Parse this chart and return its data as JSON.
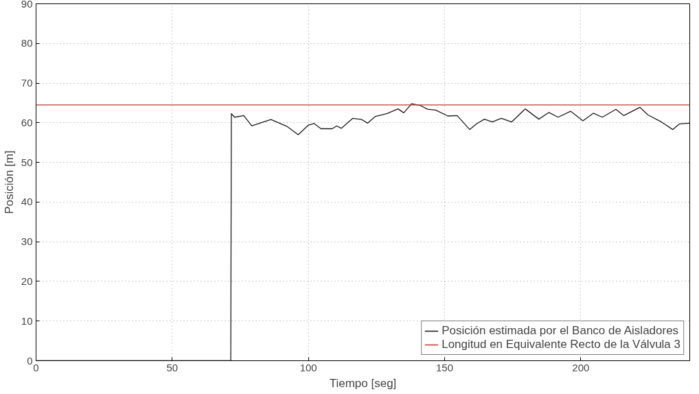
{
  "chart_data": {
    "type": "line",
    "xlabel": "Tiempo [seg]",
    "ylabel": "Posición [m]",
    "xlim": [
      0,
      240
    ],
    "ylim": [
      0,
      90
    ],
    "xticks": [
      0,
      50,
      100,
      150,
      200
    ],
    "yticks": [
      0,
      10,
      20,
      30,
      40,
      50,
      60,
      70,
      80,
      90
    ],
    "grid": true,
    "legend": "bottom right",
    "marker": "none",
    "line_style": "solid",
    "series": [
      {
        "name": "Posición estimada por el Banco de Aisladores",
        "color": "#1a1a1a",
        "x": [
          0,
          71.5,
          71.7,
          72.9,
          76.25,
          79.2,
          81.25,
          86.25,
          92.1,
          96.25,
          100,
          102.1,
          104.6,
          108.75,
          110.4,
          112.1,
          116.25,
          119.6,
          121.7,
          124.6,
          128.75,
          132.9,
          135,
          137.9,
          141.25,
          143.75,
          146.7,
          151.25,
          154.6,
          159.2,
          161.7,
          164.6,
          167.5,
          170.8,
          174.6,
          179.6,
          184.6,
          188.3,
          191.7,
          196.25,
          200.8,
          204.6,
          207.9,
          212.9,
          215.8,
          221.7,
          224.6,
          229.6,
          233.75,
          236.25,
          240
        ],
        "values": [
          0,
          0,
          62.3,
          61.4,
          61.8,
          59.2,
          59.7,
          60.8,
          59.1,
          57.0,
          59.4,
          59.8,
          58.5,
          58.5,
          59.2,
          58.6,
          61.1,
          60.8,
          59.9,
          61.6,
          62.3,
          63.5,
          62.5,
          64.8,
          64.3,
          63.4,
          63.2,
          61.7,
          61.8,
          58.3,
          59.7,
          60.9,
          60.2,
          61.1,
          60.2,
          63.5,
          60.9,
          62.6,
          61.4,
          62.9,
          60.5,
          62.4,
          61.4,
          63.4,
          61.8,
          63.9,
          62.0,
          60.2,
          58.3,
          59.7,
          59.9
        ]
      },
      {
        "name": "Longitud en Equivalente Recto de la Válvula 3",
        "color": "#c0392b",
        "x": [
          0,
          240
        ],
        "values": [
          64.5,
          64.5
        ]
      }
    ]
  }
}
